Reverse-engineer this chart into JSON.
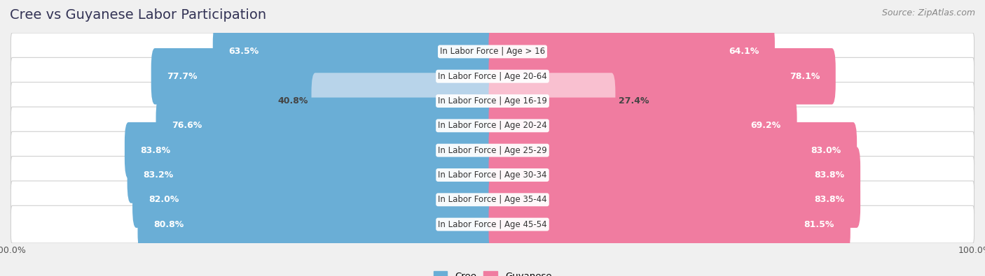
{
  "title": "Cree vs Guyanese Labor Participation",
  "source": "Source: ZipAtlas.com",
  "categories": [
    "In Labor Force | Age > 16",
    "In Labor Force | Age 20-64",
    "In Labor Force | Age 16-19",
    "In Labor Force | Age 20-24",
    "In Labor Force | Age 25-29",
    "In Labor Force | Age 30-34",
    "In Labor Force | Age 35-44",
    "In Labor Force | Age 45-54"
  ],
  "cree_values": [
    63.5,
    77.7,
    40.8,
    76.6,
    83.8,
    83.2,
    82.0,
    80.8
  ],
  "guyanese_values": [
    64.1,
    78.1,
    27.4,
    69.2,
    83.0,
    83.8,
    83.8,
    81.5
  ],
  "cree_color": "#6aaed6",
  "cree_color_light": "#b8d4ea",
  "guyanese_color": "#f07ca0",
  "guyanese_color_light": "#f9c0d0",
  "bg_color": "#f0f0f0",
  "row_bg": "#ffffff",
  "legend_cree": "Cree",
  "legend_guyanese": "Guyanese",
  "title_fontsize": 14,
  "source_fontsize": 9,
  "bar_label_fontsize": 9,
  "category_fontsize": 8.5,
  "axis_label_fontsize": 9
}
